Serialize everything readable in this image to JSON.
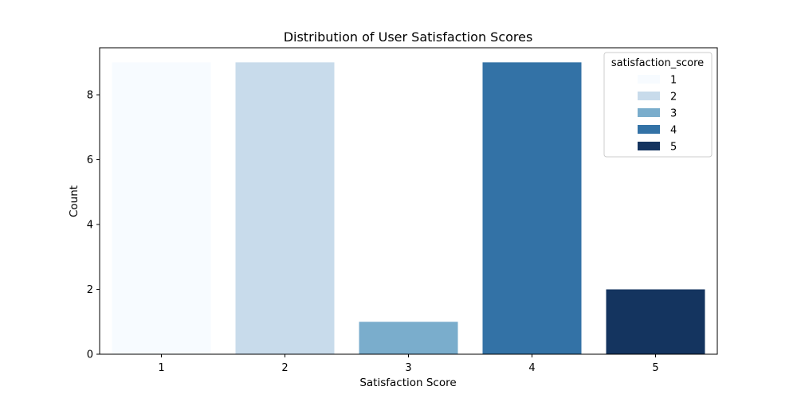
{
  "chart_data": {
    "type": "bar",
    "title": "Distribution of User Satisfaction Scores",
    "xlabel": "Satisfaction Score",
    "ylabel": "Count",
    "categories": [
      "1",
      "2",
      "3",
      "4",
      "5"
    ],
    "values": [
      9,
      9,
      1,
      9,
      2
    ],
    "colors": [
      "#f7fbff",
      "#c8dbeb",
      "#7aadcc",
      "#3372a6",
      "#14345f"
    ],
    "ylim": [
      0,
      9.45
    ],
    "yticks": [
      "0",
      "2",
      "4",
      "6",
      "8"
    ],
    "grid": false,
    "legend": {
      "title": "satisfaction_score",
      "placement": "top-right",
      "entries": [
        "1",
        "2",
        "3",
        "4",
        "5"
      ]
    }
  }
}
